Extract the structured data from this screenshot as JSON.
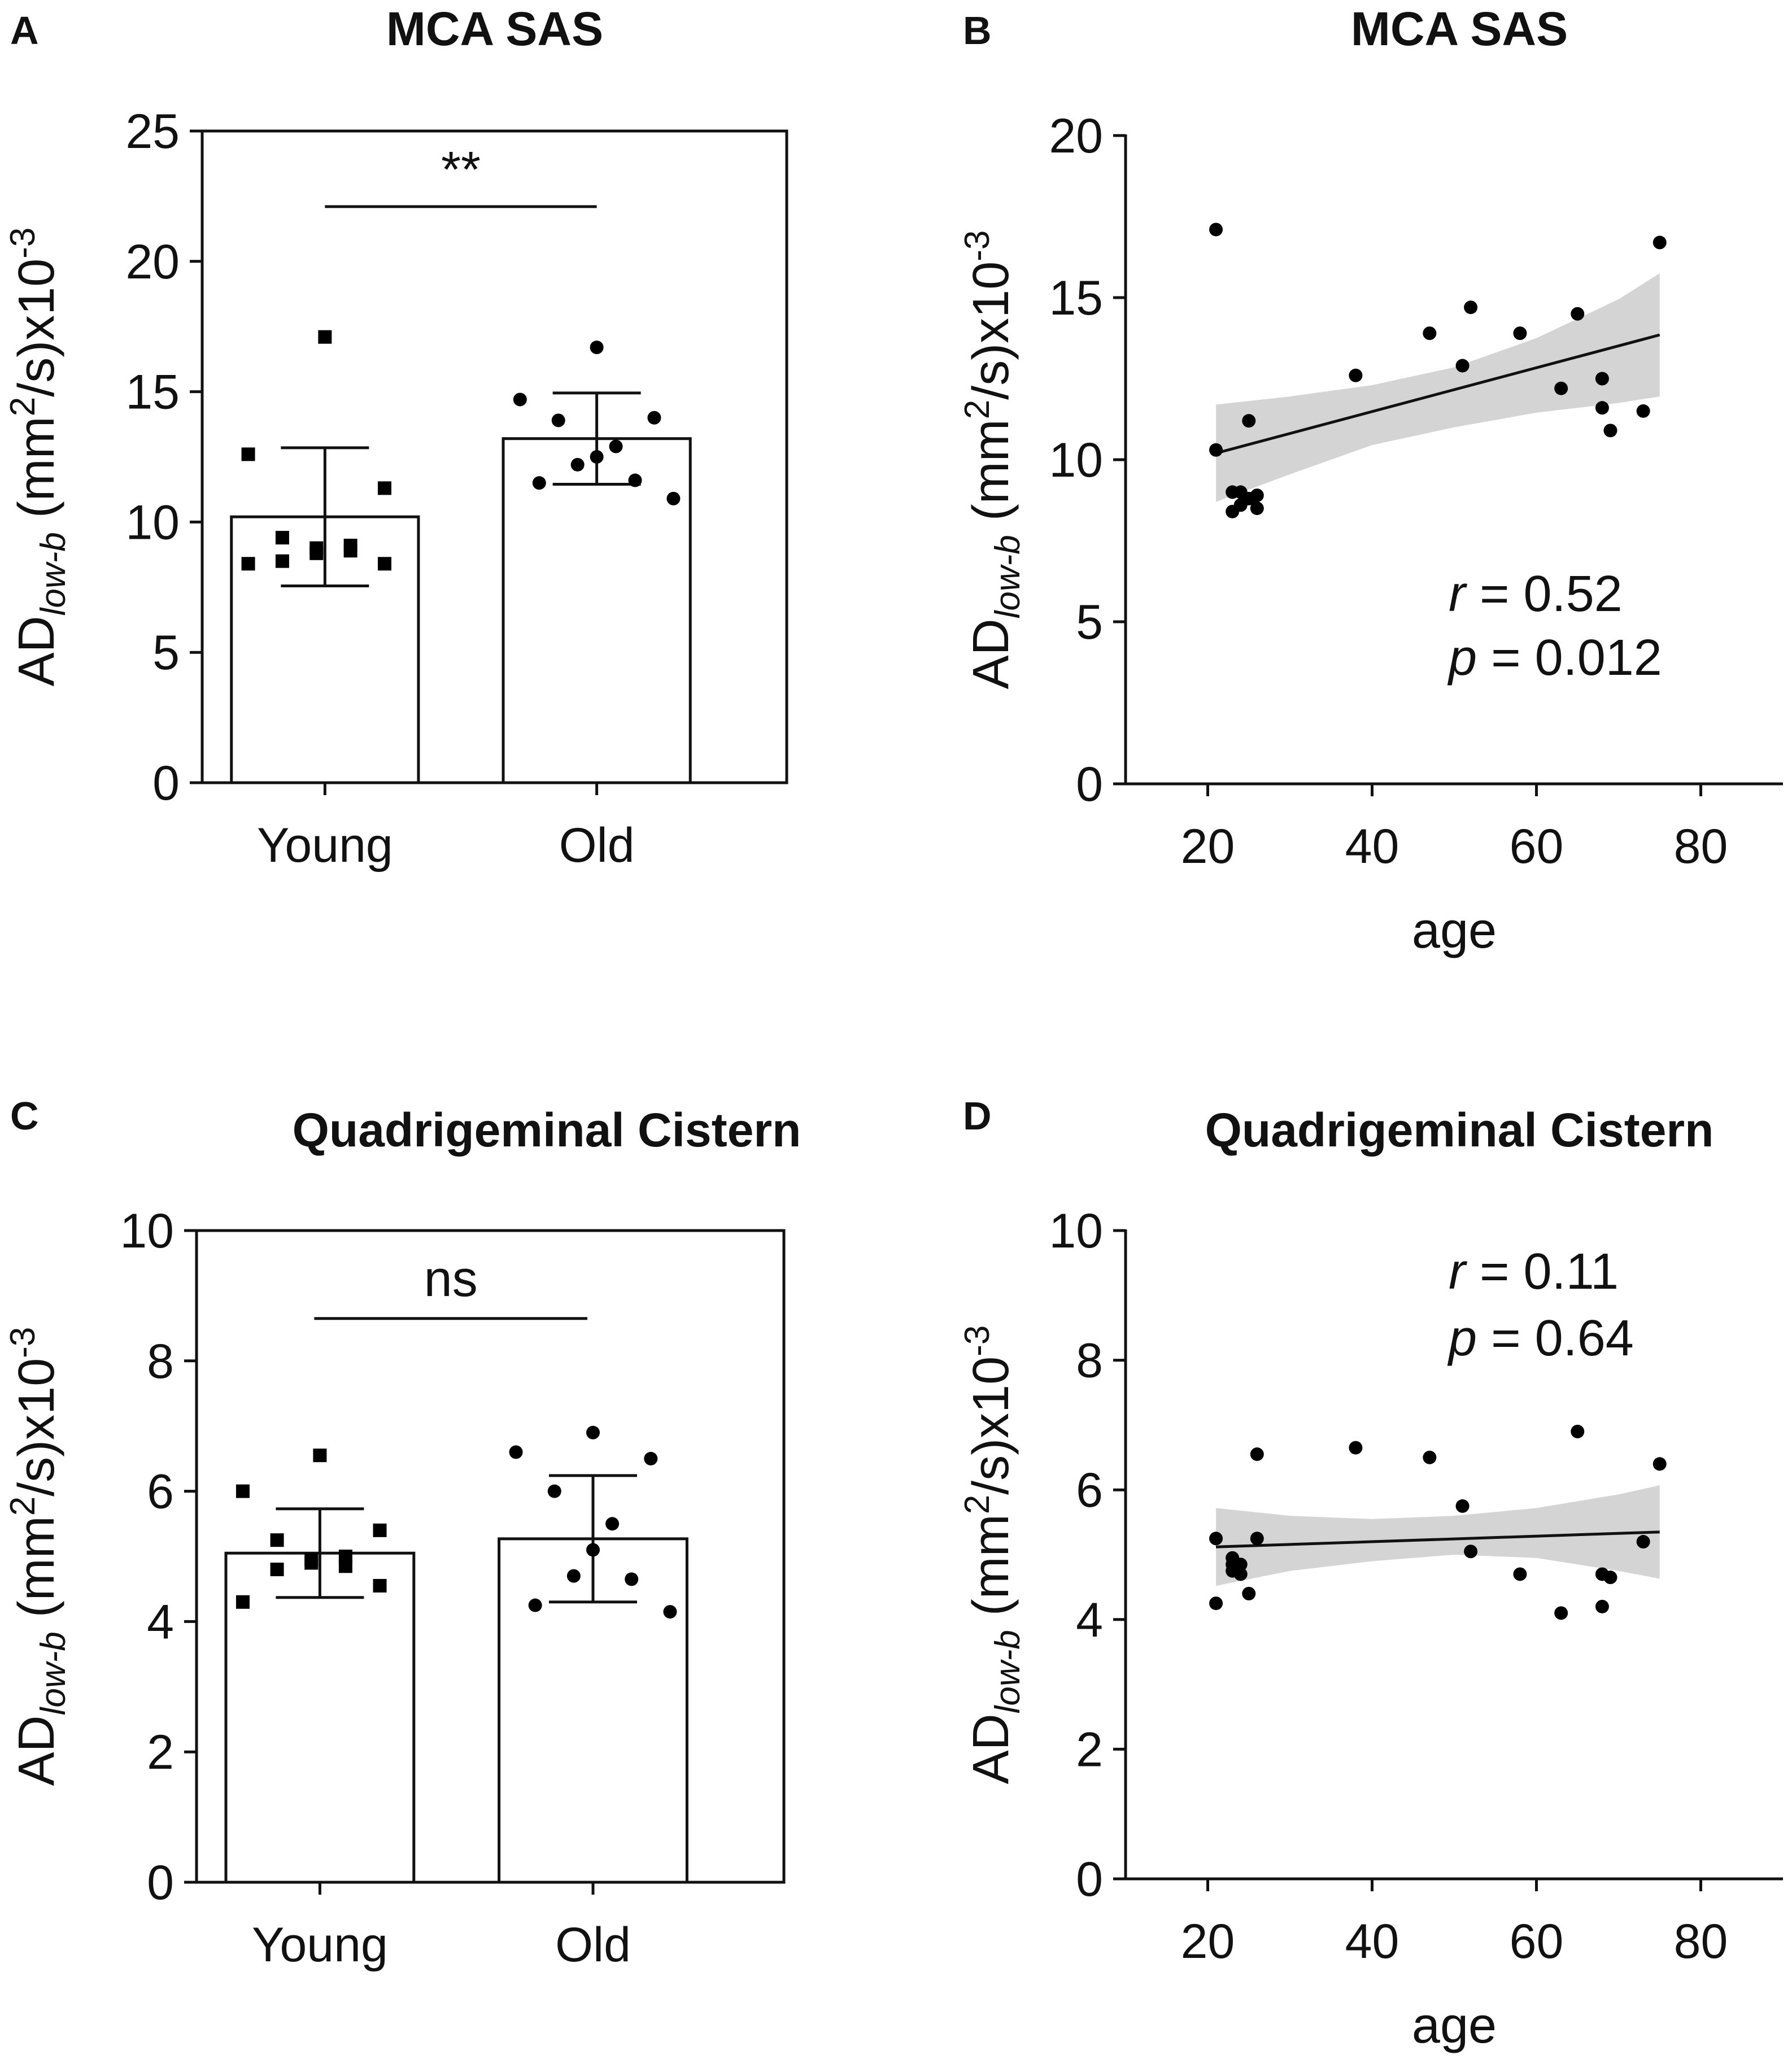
{
  "chart_data": [
    {
      "panel": "A",
      "type": "bar",
      "title": "MCA SAS",
      "ylabel_prefix": "AD",
      "ylabel_sub": "low-b",
      "ylabel_mid": " (mm",
      "ylabel_sup1": "2",
      "ylabel_mid2": "/s)x10",
      "ylabel_sup2": "-3",
      "ylim": [
        0,
        25
      ],
      "yticks": [
        0,
        5,
        10,
        15,
        20,
        25
      ],
      "categories": [
        "Young",
        "Old"
      ],
      "values": [
        10.2,
        13.2
      ],
      "errors": [
        2.65,
        1.75
      ],
      "points": [
        [
          17.1,
          12.6,
          11.3,
          9.4,
          9.1,
          9.0,
          8.8,
          8.9,
          8.5,
          8.4,
          8.4
        ],
        [
          16.7,
          14.7,
          14.0,
          13.9,
          12.9,
          12.5,
          12.2,
          11.6,
          11.5,
          10.9
        ]
      ],
      "markers": [
        "square",
        "circle"
      ],
      "significance": "**"
    },
    {
      "panel": "B",
      "type": "scatter",
      "title": "MCA SAS",
      "xlabel": "age",
      "ylabel_prefix": "AD",
      "ylabel_sub": "low-b",
      "ylabel_mid": " (mm",
      "ylabel_sup1": "2",
      "ylabel_mid2": "/s)x10",
      "ylabel_sup2": "-3",
      "xlim": [
        10,
        90
      ],
      "ylim": [
        0,
        20
      ],
      "xticks": [
        20,
        40,
        60,
        80
      ],
      "yticks": [
        0,
        5,
        10,
        15,
        20
      ],
      "x": [
        21,
        21,
        23,
        23,
        24,
        24,
        25,
        25,
        26,
        26,
        38,
        47,
        51,
        52,
        58,
        63,
        65,
        68,
        68,
        69,
        73,
        75
      ],
      "y": [
        17.1,
        10.3,
        8.4,
        9.0,
        9.0,
        8.6,
        8.8,
        11.2,
        8.5,
        8.9,
        12.6,
        13.9,
        12.9,
        14.7,
        13.9,
        12.2,
        14.5,
        12.5,
        11.6,
        10.9,
        11.5,
        16.7
      ],
      "fit": {
        "x": [
          21,
          75
        ],
        "y": [
          10.2,
          13.85
        ]
      },
      "ci_upper": [
        [
          21,
          11.7
        ],
        [
          30,
          11.95
        ],
        [
          40,
          12.3
        ],
        [
          50,
          12.85
        ],
        [
          60,
          13.75
        ],
        [
          70,
          14.95
        ],
        [
          75,
          15.75
        ]
      ],
      "ci_lower": [
        [
          21,
          8.7
        ],
        [
          30,
          9.55
        ],
        [
          40,
          10.45
        ],
        [
          50,
          11.0
        ],
        [
          60,
          11.45
        ],
        [
          70,
          11.75
        ],
        [
          75,
          11.95
        ]
      ],
      "stat_r_label": "r",
      "stat_r_value": " = 0.52",
      "stat_p_label": "p",
      "stat_p_value": " = 0.012"
    },
    {
      "panel": "C",
      "type": "bar",
      "title": "Quadrigeminal Cistern",
      "ylabel_prefix": "AD",
      "ylabel_sub": "low-b",
      "ylabel_mid": " (mm",
      "ylabel_sup1": "2",
      "ylabel_mid2": "/s)x10",
      "ylabel_sup2": "-3",
      "ylim": [
        0,
        10
      ],
      "yticks": [
        0,
        2,
        4,
        6,
        8,
        10
      ],
      "categories": [
        "Young",
        "Old"
      ],
      "values": [
        5.05,
        5.27
      ],
      "errors": [
        0.68,
        0.97
      ],
      "points": [
        [
          6.55,
          6.0,
          5.4,
          5.25,
          5.0,
          4.95,
          4.9,
          4.85,
          4.8,
          4.55,
          4.3
        ],
        [
          6.9,
          6.6,
          6.5,
          6.0,
          5.5,
          5.1,
          4.7,
          4.65,
          4.25,
          4.15
        ]
      ],
      "markers": [
        "square",
        "circle"
      ],
      "significance": "ns"
    },
    {
      "panel": "D",
      "type": "scatter",
      "title": "Quadrigeminal Cistern",
      "xlabel": "age",
      "ylabel_prefix": "AD",
      "ylabel_sub": "low-b",
      "ylabel_mid": " (mm",
      "ylabel_sup1": "2",
      "ylabel_mid2": "/s)x10",
      "ylabel_sup2": "-3",
      "xlim": [
        10,
        90
      ],
      "ylim": [
        0,
        10
      ],
      "xticks": [
        20,
        40,
        60,
        80
      ],
      "yticks": [
        0,
        2,
        4,
        6,
        8,
        10
      ],
      "x": [
        21,
        21,
        23,
        23,
        23,
        24,
        24,
        25,
        26,
        26,
        38,
        47,
        51,
        52,
        58,
        63,
        65,
        68,
        68,
        69,
        73,
        75
      ],
      "y": [
        4.25,
        5.25,
        4.85,
        4.95,
        4.75,
        4.85,
        4.7,
        4.4,
        6.55,
        5.25,
        6.65,
        6.5,
        5.75,
        5.05,
        4.7,
        4.1,
        6.9,
        4.2,
        4.7,
        4.65,
        5.2,
        6.4
      ],
      "fit": {
        "x": [
          21,
          75
        ],
        "y": [
          5.12,
          5.35
        ]
      },
      "ci_upper": [
        [
          21,
          5.72
        ],
        [
          30,
          5.6
        ],
        [
          40,
          5.55
        ],
        [
          50,
          5.6
        ],
        [
          60,
          5.72
        ],
        [
          70,
          5.93
        ],
        [
          75,
          6.07
        ]
      ],
      "ci_lower": [
        [
          21,
          4.52
        ],
        [
          30,
          4.75
        ],
        [
          40,
          4.9
        ],
        [
          50,
          5.0
        ],
        [
          60,
          4.95
        ],
        [
          70,
          4.75
        ],
        [
          75,
          4.63
        ]
      ],
      "stat_r_label": "r",
      "stat_r_value": " = 0.11",
      "stat_p_label": "p",
      "stat_p_value": " = 0.64"
    }
  ]
}
